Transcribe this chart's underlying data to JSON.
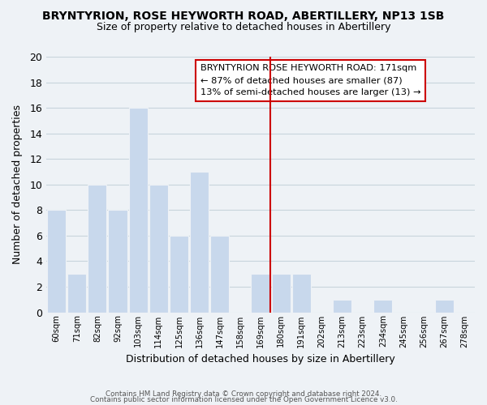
{
  "title": "BRYNTYRION, ROSE HEYWORTH ROAD, ABERTILLERY, NP13 1SB",
  "subtitle": "Size of property relative to detached houses in Abertillery",
  "xlabel": "Distribution of detached houses by size in Abertillery",
  "ylabel": "Number of detached properties",
  "bar_color": "#c8d8ec",
  "grid_color": "#c8d4dc",
  "bins": [
    "60sqm",
    "71sqm",
    "82sqm",
    "92sqm",
    "103sqm",
    "114sqm",
    "125sqm",
    "136sqm",
    "147sqm",
    "158sqm",
    "169sqm",
    "180sqm",
    "191sqm",
    "202sqm",
    "213sqm",
    "223sqm",
    "234sqm",
    "245sqm",
    "256sqm",
    "267sqm",
    "278sqm"
  ],
  "values": [
    8,
    3,
    10,
    8,
    16,
    10,
    6,
    11,
    6,
    0,
    3,
    3,
    3,
    0,
    1,
    0,
    1,
    0,
    0,
    1,
    0
  ],
  "ylim": [
    0,
    20
  ],
  "yticks": [
    0,
    2,
    4,
    6,
    8,
    10,
    12,
    14,
    16,
    18,
    20
  ],
  "vline_color": "#cc0000",
  "annotation_title": "BRYNTYRION ROSE HEYWORTH ROAD: 171sqm",
  "annotation_line1": "← 87% of detached houses are smaller (87)",
  "annotation_line2": "13% of semi-detached houses are larger (13) →",
  "annotation_box_color": "#ffffff",
  "annotation_box_edge": "#cc0000",
  "footer1": "Contains HM Land Registry data © Crown copyright and database right 2024.",
  "footer2": "Contains public sector information licensed under the Open Government Licence v3.0.",
  "background_color": "#eef2f6"
}
